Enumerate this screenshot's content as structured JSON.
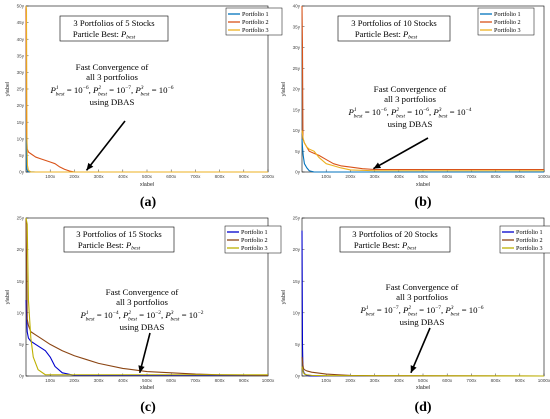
{
  "chart_data": [
    {
      "type": "line",
      "panel_label": "(a)",
      "title": [
        "3 Portfolios of 5 Stocks",
        "Particle Best: P_best"
      ],
      "xlabel": "xlabel",
      "ylabel": "ylabel",
      "xlim": [
        0,
        1000
      ],
      "ylim": [
        0,
        50
      ],
      "xticks": [
        100,
        200,
        300,
        400,
        500,
        600,
        700,
        800,
        900,
        1000
      ],
      "xtick_labels": [
        "100x",
        "200x",
        "300x",
        "400x",
        "500x",
        "600x",
        "700x",
        "800x",
        "900x",
        "1000x"
      ],
      "yticks": [
        0,
        5,
        10,
        15,
        20,
        25,
        30,
        35,
        40,
        45,
        50
      ],
      "ytick_labels": [
        "0y",
        "5y",
        "10y",
        "15y",
        "20y",
        "25y",
        "30y",
        "35y",
        "40y",
        "45y",
        "50y"
      ],
      "legend": "top-right",
      "grid": false,
      "annotation": {
        "lines": [
          "Fast Convergence of",
          "all 3 portfolios",
          "P^1_best = 10^-6, P^2_best = 10^-7, P^3_best = 10^-6",
          "using DBAS"
        ],
        "arrow_to": [
          250,
          0.5
        ]
      },
      "series": [
        {
          "name": "Portfolio 1",
          "color": "#0072bd",
          "x": [
            0,
            1,
            2,
            3,
            6,
            10,
            20,
            40,
            1000
          ],
          "y": [
            50,
            20,
            5,
            1,
            0.3,
            0.1,
            0.05,
            0,
            0
          ]
        },
        {
          "name": "Portfolio 2",
          "color": "#d95319",
          "x": [
            0,
            2,
            5,
            10,
            20,
            40,
            60,
            80,
            100,
            120,
            140,
            160,
            180,
            200,
            1000
          ],
          "y": [
            50,
            12,
            7,
            6,
            5.5,
            4.5,
            4,
            3.5,
            3,
            2.5,
            1.5,
            0.8,
            0.3,
            0,
            0
          ]
        },
        {
          "name": "Portfolio 3",
          "color": "#edb120",
          "x": [
            0,
            2,
            4,
            6,
            10,
            20,
            1000
          ],
          "y": [
            50,
            49,
            10,
            2,
            0.5,
            0,
            0
          ]
        }
      ]
    },
    {
      "type": "line",
      "panel_label": "(b)",
      "title": [
        "3 Portfolios of 10 Stocks",
        "Particle Best: P_best"
      ],
      "xlabel": "xlabel",
      "ylabel": "ylabel",
      "xlim": [
        0,
        1000
      ],
      "ylim": [
        0,
        40
      ],
      "xticks": [
        100,
        200,
        300,
        400,
        500,
        600,
        700,
        800,
        900,
        1000
      ],
      "xtick_labels": [
        "100x",
        "200x",
        "300x",
        "400x",
        "500x",
        "600x",
        "700x",
        "800x",
        "900x",
        "1000x"
      ],
      "yticks": [
        0,
        5,
        10,
        15,
        20,
        25,
        30,
        35,
        40
      ],
      "ytick_labels": [
        "0y",
        "5y",
        "10y",
        "15y",
        "20y",
        "25y",
        "30y",
        "35y",
        "40y"
      ],
      "legend": "top-right",
      "grid": false,
      "annotation": {
        "lines": [
          "Fast Convergence of",
          "all 3 portfolios",
          "P^1_best = 10^-6, P^2_best = 10^-6, P^3_best = 10^-4",
          "using DBAS"
        ],
        "arrow_to": [
          295,
          0.8
        ]
      },
      "series": [
        {
          "name": "Portfolio 1",
          "color": "#0072bd",
          "x": [
            0,
            2,
            5,
            10,
            20,
            30,
            50,
            1000
          ],
          "y": [
            8,
            6,
            4,
            2,
            1,
            0.3,
            0,
            0
          ]
        },
        {
          "name": "Portfolio 2",
          "color": "#d95319",
          "x": [
            0,
            2,
            4,
            10,
            20,
            30,
            50,
            70,
            100,
            130,
            160,
            200,
            250,
            300,
            1000
          ],
          "y": [
            40,
            30,
            8,
            7,
            6,
            5,
            4.5,
            4,
            3,
            2,
            1.5,
            1.2,
            0.8,
            0.6,
            0.6
          ]
        },
        {
          "name": "Portfolio 3",
          "color": "#edb120",
          "x": [
            0,
            5,
            10,
            20,
            30,
            50,
            70,
            100,
            130,
            160,
            200,
            300,
            1000
          ],
          "y": [
            10,
            8,
            7,
            6,
            5.5,
            5,
            3.5,
            2,
            1.5,
            1,
            0.5,
            0.3,
            0.3
          ]
        }
      ]
    },
    {
      "type": "line",
      "panel_label": "(c)",
      "title": [
        "3 Portfolios of 15 Stocks",
        "Particle Best: P_best"
      ],
      "xlabel": "xlabel",
      "ylabel": "ylabel",
      "xlim": [
        0,
        1000
      ],
      "ylim": [
        0,
        25
      ],
      "xticks": [
        100,
        200,
        300,
        400,
        500,
        600,
        700,
        800,
        900,
        1000
      ],
      "xtick_labels": [
        "100x",
        "200x",
        "300x",
        "400x",
        "500x",
        "600x",
        "700x",
        "800x",
        "900x",
        "1000x"
      ],
      "yticks": [
        0,
        5,
        10,
        15,
        20,
        25
      ],
      "ytick_labels": [
        "0y",
        "5y",
        "10y",
        "15y",
        "20y",
        "25y"
      ],
      "legend": "top-right",
      "grid": false,
      "annotation": {
        "lines": [
          "Fast Convergence of",
          "all 3 portfolios",
          "P^1_best = 10^-4, P^2_best = 10^-2, P^3_best = 10^-2",
          "using DBAS"
        ],
        "arrow_to": [
          470,
          0.5
        ]
      },
      "series": [
        {
          "name": "Portfolio 1",
          "color": "#0000cd",
          "x": [
            0,
            5,
            10,
            20,
            40,
            60,
            80,
            100,
            120,
            150,
            200,
            1000
          ],
          "y": [
            12,
            7,
            6,
            5.5,
            5,
            4.5,
            4,
            3,
            1.5,
            0.5,
            0.1,
            0.1
          ]
        },
        {
          "name": "Portfolio 2",
          "color": "#8b4513",
          "x": [
            0,
            5,
            10,
            20,
            40,
            60,
            100,
            150,
            200,
            250,
            300,
            400,
            500,
            600,
            700,
            800,
            900,
            1000
          ],
          "y": [
            25,
            9,
            8,
            7,
            6.5,
            6,
            5,
            4,
            3.2,
            2.6,
            2,
            1.2,
            0.7,
            0.5,
            0.3,
            0.2,
            0.15,
            0.1
          ]
        },
        {
          "name": "Portfolio 3",
          "color": "#bdb000",
          "x": [
            0,
            5,
            10,
            20,
            30,
            50,
            80,
            1000
          ],
          "y": [
            25,
            24,
            12,
            6,
            3,
            1,
            0.2,
            0.2
          ]
        }
      ]
    },
    {
      "type": "line",
      "panel_label": "(d)",
      "title": [
        "3 Portfolios of 20 Stocks",
        "Particle Best: P_best"
      ],
      "xlabel": "xlabel",
      "ylabel": "ylabel",
      "xlim": [
        0,
        1000
      ],
      "ylim": [
        0,
        25
      ],
      "xticks": [
        100,
        200,
        300,
        400,
        500,
        600,
        700,
        800,
        900,
        1000
      ],
      "xtick_labels": [
        "100x",
        "200x",
        "300x",
        "400x",
        "500x",
        "600x",
        "700x",
        "800x",
        "900x",
        "1000x"
      ],
      "yticks": [
        0,
        5,
        10,
        15,
        20,
        25
      ],
      "ytick_labels": [
        "0y",
        "5y",
        "10y",
        "15y",
        "20y",
        "25y"
      ],
      "legend": "top-right",
      "grid": false,
      "annotation": {
        "lines": [
          "Fast Convergence of",
          "all 3 portfolios",
          "P^1_best = 10^-7, P^2_best = 10^-7, P^3_best = 10^-6",
          "using DBAS"
        ],
        "arrow_to": [
          450,
          0.5
        ]
      },
      "series": [
        {
          "name": "Portfolio 1",
          "color": "#0000cd",
          "x": [
            0,
            2,
            4,
            8,
            15,
            30,
            1000
          ],
          "y": [
            23,
            5,
            1,
            0.5,
            0.2,
            0,
            0
          ]
        },
        {
          "name": "Portfolio 2",
          "color": "#8b4513",
          "x": [
            0,
            3,
            6,
            10,
            20,
            40,
            60,
            100,
            150,
            200,
            300,
            1000
          ],
          "y": [
            3,
            2,
            1.2,
            1,
            0.8,
            0.6,
            0.5,
            0.3,
            0.2,
            0.1,
            0.05,
            0
          ]
        },
        {
          "name": "Portfolio 3",
          "color": "#bdb000",
          "x": [
            0,
            3,
            6,
            10,
            20,
            40,
            100,
            1000
          ],
          "y": [
            1.5,
            1,
            0.5,
            0.3,
            0.2,
            0.1,
            0.05,
            0
          ]
        }
      ]
    }
  ]
}
